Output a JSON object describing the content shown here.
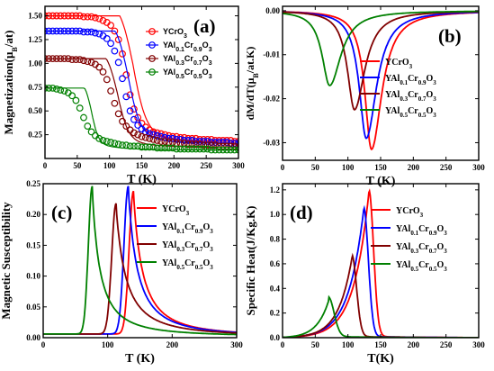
{
  "colors": {
    "red": "#ff0000",
    "blue": "#0000ff",
    "maroon": "#800000",
    "green": "#008000"
  },
  "chart_data": [
    {
      "id": "a",
      "type": "scatter",
      "label": "(a)",
      "xlabel": "T (K)",
      "ylabel": "Magnetization(μB/at)",
      "xlim": [
        0,
        300
      ],
      "ylim": [
        0,
        1.6
      ],
      "xticks": [
        0,
        50,
        100,
        150,
        200,
        250,
        300
      ],
      "yticks": [
        0.25,
        0.5,
        0.75,
        1.0,
        1.25,
        1.5
      ],
      "ytick_labels": [
        "0.25",
        "0.50",
        "0.75",
        "1.00",
        "1.25",
        "1.50"
      ],
      "legend_position": "right",
      "series": [
        {
          "name": "YCrO3",
          "color": "#ff0000",
          "marker": "open-circle",
          "tc": 136,
          "m0": 1.5,
          "tail": 0.18,
          "x": [
            0,
            6,
            12,
            18,
            24,
            30,
            36,
            42,
            48,
            54,
            60,
            66,
            72,
            78,
            84,
            90,
            96,
            102,
            108,
            114,
            120,
            126,
            132,
            138,
            144,
            150,
            156,
            162,
            168,
            174,
            180,
            186,
            192,
            198,
            204,
            210,
            216,
            222,
            228,
            234,
            240,
            246,
            252,
            258,
            264,
            270,
            276,
            282,
            288,
            294,
            300
          ],
          "y": [
            1.5,
            1.5,
            1.5,
            1.5,
            1.5,
            1.5,
            1.5,
            1.5,
            1.5,
            1.5,
            1.49,
            1.49,
            1.49,
            1.48,
            1.47,
            1.45,
            1.43,
            1.4,
            1.34,
            1.25,
            1.1,
            0.88,
            0.67,
            0.52,
            0.43,
            0.37,
            0.33,
            0.3,
            0.28,
            0.27,
            0.26,
            0.25,
            0.24,
            0.23,
            0.23,
            0.22,
            0.22,
            0.21,
            0.21,
            0.21,
            0.2,
            0.2,
            0.2,
            0.2,
            0.19,
            0.19,
            0.19,
            0.19,
            0.19,
            0.18,
            0.18
          ]
        },
        {
          "name": "YAl0.1Cr0.9O3",
          "color": "#0000ff",
          "marker": "open-circle",
          "tc": 128,
          "m0": 1.34,
          "tail": 0.16,
          "x": [
            0,
            6,
            12,
            18,
            24,
            30,
            36,
            42,
            48,
            54,
            60,
            66,
            72,
            78,
            84,
            90,
            96,
            102,
            108,
            114,
            120,
            126,
            132,
            138,
            144,
            150,
            156,
            162,
            168,
            174,
            180,
            186,
            192,
            198,
            204,
            210,
            216,
            222,
            228,
            234,
            240,
            246,
            252,
            258,
            264,
            270,
            276,
            282,
            288,
            294,
            300
          ],
          "y": [
            1.34,
            1.34,
            1.34,
            1.34,
            1.34,
            1.34,
            1.34,
            1.34,
            1.34,
            1.34,
            1.33,
            1.33,
            1.33,
            1.32,
            1.31,
            1.29,
            1.26,
            1.21,
            1.13,
            1.01,
            0.84,
            0.65,
            0.5,
            0.41,
            0.35,
            0.31,
            0.28,
            0.26,
            0.25,
            0.24,
            0.23,
            0.22,
            0.21,
            0.21,
            0.2,
            0.2,
            0.19,
            0.19,
            0.19,
            0.18,
            0.18,
            0.18,
            0.18,
            0.17,
            0.17,
            0.17,
            0.17,
            0.17,
            0.16,
            0.16,
            0.16
          ]
        },
        {
          "name": "YAl0.3Cr0.7O3",
          "color": "#800000",
          "marker": "open-circle",
          "tc": 112,
          "m0": 1.05,
          "tail": 0.12,
          "x": [
            0,
            6,
            12,
            18,
            24,
            30,
            36,
            42,
            48,
            54,
            60,
            66,
            72,
            78,
            84,
            90,
            96,
            102,
            108,
            114,
            120,
            126,
            132,
            138,
            144,
            150,
            156,
            162,
            168,
            174,
            180,
            186,
            192,
            198,
            204,
            210,
            216,
            222,
            228,
            234,
            240,
            246,
            252,
            258,
            264,
            270,
            276,
            282,
            288,
            294,
            300
          ],
          "y": [
            1.05,
            1.05,
            1.05,
            1.05,
            1.05,
            1.05,
            1.05,
            1.04,
            1.04,
            1.04,
            1.03,
            1.02,
            1.01,
            0.99,
            0.96,
            0.91,
            0.83,
            0.71,
            0.58,
            0.47,
            0.39,
            0.34,
            0.3,
            0.27,
            0.25,
            0.23,
            0.22,
            0.21,
            0.2,
            0.19,
            0.18,
            0.18,
            0.17,
            0.17,
            0.16,
            0.16,
            0.16,
            0.15,
            0.15,
            0.15,
            0.15,
            0.14,
            0.14,
            0.14,
            0.14,
            0.13,
            0.13,
            0.13,
            0.13,
            0.13,
            0.12
          ]
        },
        {
          "name": "YAl0.5Cr0.5O3",
          "color": "#008000",
          "marker": "open-circle",
          "tc": 72,
          "m0": 0.74,
          "tail": 0.09,
          "x": [
            0,
            6,
            12,
            18,
            24,
            30,
            36,
            42,
            48,
            54,
            60,
            66,
            72,
            78,
            84,
            90,
            96,
            102,
            108,
            114,
            120,
            126,
            132,
            138,
            144,
            150,
            156,
            162,
            168,
            174,
            180,
            186,
            192,
            198,
            204,
            210,
            216,
            222,
            228,
            234,
            240,
            246,
            252,
            258,
            264,
            270,
            276,
            282,
            288,
            294,
            300
          ],
          "y": [
            0.74,
            0.74,
            0.74,
            0.73,
            0.72,
            0.71,
            0.69,
            0.66,
            0.61,
            0.53,
            0.43,
            0.34,
            0.28,
            0.24,
            0.21,
            0.19,
            0.18,
            0.17,
            0.16,
            0.15,
            0.14,
            0.14,
            0.13,
            0.13,
            0.13,
            0.12,
            0.12,
            0.12,
            0.12,
            0.11,
            0.11,
            0.11,
            0.11,
            0.11,
            0.1,
            0.1,
            0.1,
            0.1,
            0.1,
            0.1,
            0.1,
            0.1,
            0.1,
            0.09,
            0.09,
            0.09,
            0.09,
            0.09,
            0.09,
            0.09,
            0.09
          ]
        }
      ]
    },
    {
      "id": "b",
      "type": "line",
      "label": "(b)",
      "xlabel": "T (K)",
      "ylabel": "dM/dT(μB/at.K)",
      "xlim": [
        0,
        300
      ],
      "ylim": [
        -0.034,
        0.001
      ],
      "xticks": [
        0,
        50,
        100,
        150,
        200,
        250,
        300
      ],
      "yticks": [
        0,
        -0.01,
        -0.02,
        -0.03
      ],
      "ytick_labels": [
        "0.00",
        "-0.01",
        "-0.02",
        "-0.03"
      ],
      "legend_position": "right",
      "series": [
        {
          "name": "YCrO3",
          "color": "#ff0000",
          "peak_x": 136,
          "peak_y": -0.0315,
          "width_left": 14,
          "width_right": 22
        },
        {
          "name": "YAl0.1Cr0.9O3",
          "color": "#0000ff",
          "peak_x": 128,
          "peak_y": -0.029,
          "width_left": 15,
          "width_right": 22
        },
        {
          "name": "YAl0.3Cr0.7O3",
          "color": "#800000",
          "peak_x": 110,
          "peak_y": -0.0225,
          "width_left": 15,
          "width_right": 22
        },
        {
          "name": "YAl0.5Cr0.5O3",
          "color": "#008000",
          "peak_x": 72,
          "peak_y": -0.017,
          "width_left": 16,
          "width_right": 24
        }
      ]
    },
    {
      "id": "c",
      "type": "line",
      "label": "(c)",
      "xlabel": "T (K)",
      "ylabel": "Magnetic Susceptibility",
      "xlim": [
        0,
        300
      ],
      "ylim": [
        0,
        0.25
      ],
      "xticks": [
        0,
        100,
        200,
        300
      ],
      "yticks": [
        0,
        0.05,
        0.1,
        0.15,
        0.2,
        0.25
      ],
      "ytick_labels": [
        "0.00",
        "0.05",
        "0.10",
        "0.15",
        "0.20",
        "0.25"
      ],
      "legend_position": "top-right",
      "series": [
        {
          "name": "YCrO3",
          "color": "#ff0000",
          "peak_x": 140,
          "peak_y": 0.232,
          "width_left": 9,
          "width_right": 26
        },
        {
          "name": "YAl0.1Cr0.9O3",
          "color": "#0000ff",
          "peak_x": 132,
          "peak_y": 0.24,
          "width_left": 9,
          "width_right": 26
        },
        {
          "name": "YAl0.3Cr0.7O3",
          "color": "#800000",
          "peak_x": 113,
          "peak_y": 0.212,
          "width_left": 9,
          "width_right": 28
        },
        {
          "name": "YAl0.5Cr0.5O3",
          "color": "#008000",
          "peak_x": 76,
          "peak_y": 0.24,
          "width_left": 8,
          "width_right": 22
        }
      ]
    },
    {
      "id": "d",
      "type": "line",
      "label": "(d)",
      "xlabel": "T(K)",
      "ylabel": "Specific Heat(J/Kg.K)",
      "xlim": [
        0,
        300
      ],
      "ylim": [
        0,
        1.25
      ],
      "xticks": [
        0,
        50,
        100,
        150,
        200,
        250,
        300
      ],
      "yticks": [
        0,
        0.2,
        0.4,
        0.6,
        0.8,
        1.0,
        1.2
      ],
      "ytick_labels": [
        "0.0",
        "0.2",
        "0.4",
        "0.6",
        "0.8",
        "1.0",
        "1.2"
      ],
      "legend_position": "top-right",
      "series": [
        {
          "name": "YCrO3",
          "color": "#ff0000",
          "peak_x": 132,
          "peak_y": 1.19,
          "rise": 22,
          "fall": 9
        },
        {
          "name": "YAl0.1Cr0.9O3",
          "color": "#0000ff",
          "peak_x": 124,
          "peak_y": 1.05,
          "rise": 22,
          "fall": 9
        },
        {
          "name": "YAl0.3Cr0.7O3",
          "color": "#800000",
          "peak_x": 106,
          "peak_y": 0.66,
          "rise": 20,
          "fall": 9
        },
        {
          "name": "YAl0.5Cr0.5O3",
          "color": "#008000",
          "peak_x": 70,
          "peak_y": 0.32,
          "rise": 18,
          "fall": 11
        }
      ]
    }
  ]
}
